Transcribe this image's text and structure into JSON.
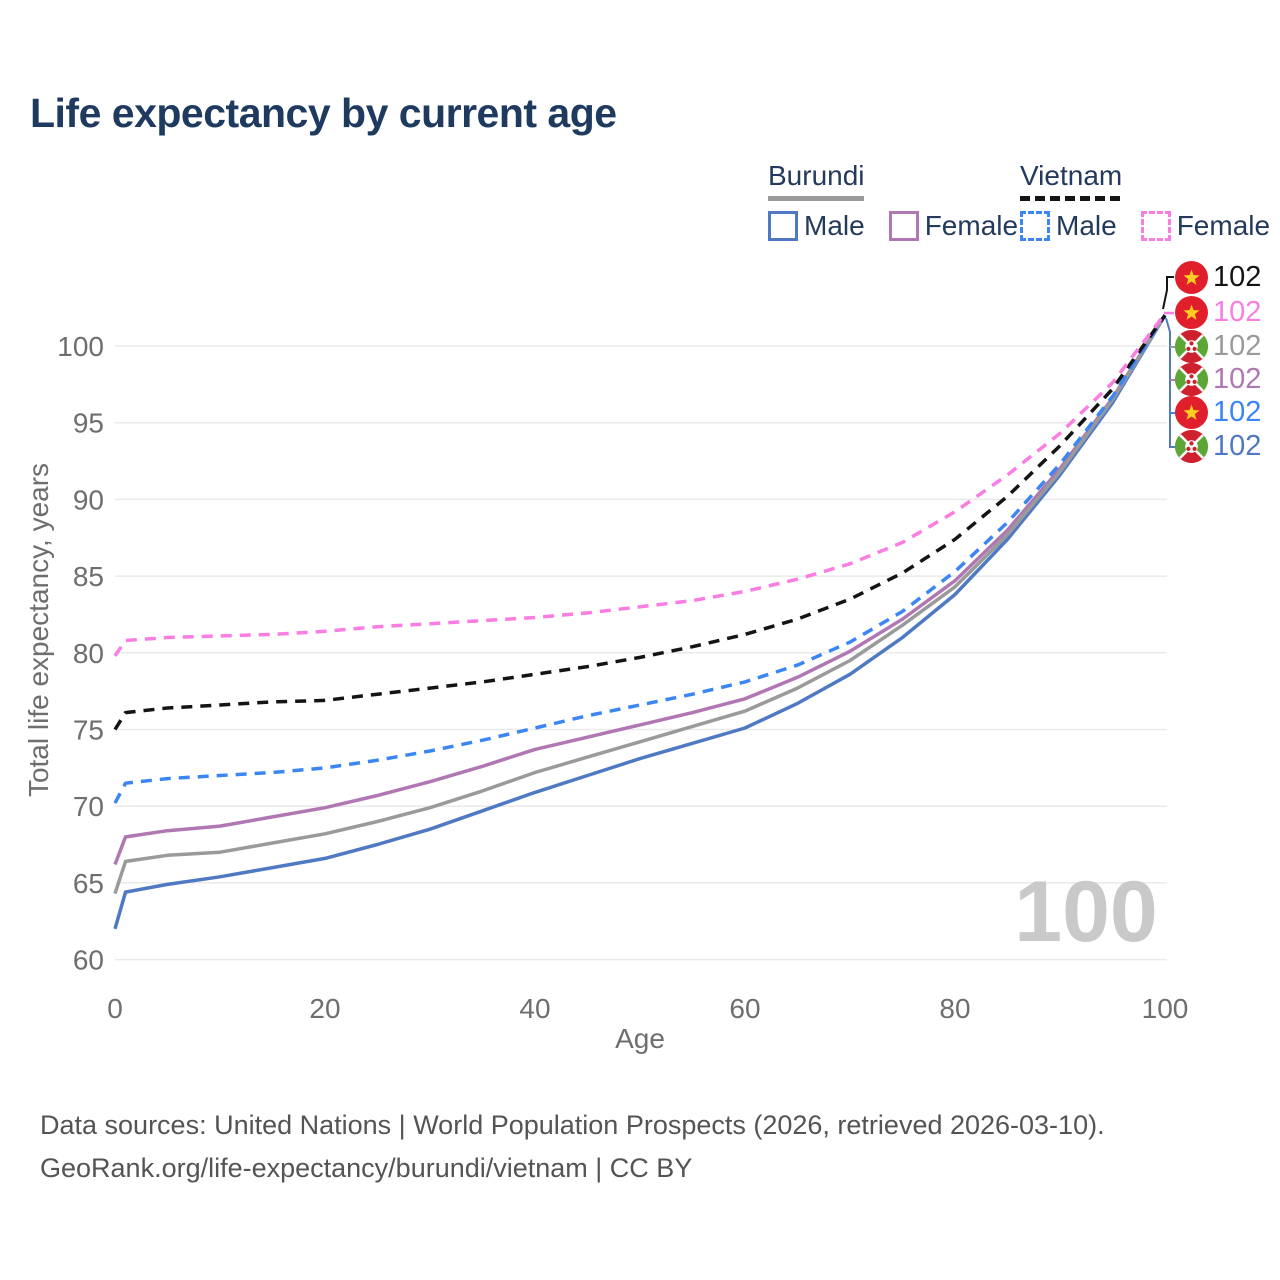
{
  "title": "Life expectancy by current age",
  "legend": {
    "groups": [
      {
        "title": "Burundi",
        "line_style": "solid",
        "underline_color": "#9a9a9a",
        "items": [
          {
            "label": "Male",
            "color": "#5079c3"
          },
          {
            "label": "Female",
            "color": "#b077b3"
          }
        ]
      },
      {
        "title": "Vietnam",
        "line_style": "dashed",
        "underline_color": "#141414",
        "items": [
          {
            "label": "Male",
            "color": "#3c86f4"
          },
          {
            "label": "Female",
            "color": "#fa7de1"
          }
        ]
      }
    ]
  },
  "end_labels": [
    {
      "flag": "vietnam",
      "value": "102",
      "color": "#141414"
    },
    {
      "flag": "vietnam",
      "value": "102",
      "color": "#fa7de1"
    },
    {
      "flag": "burundi",
      "value": "102",
      "color": "#9a9a9a"
    },
    {
      "flag": "burundi",
      "value": "102",
      "color": "#b077b3"
    },
    {
      "flag": "vietnam",
      "value": "102",
      "color": "#3c86f4"
    },
    {
      "flag": "burundi",
      "value": "102",
      "color": "#5079c3"
    }
  ],
  "watermark": "100",
  "footer": {
    "line1": "Data sources: United Nations | World Population Prospects (2026, retrieved 2026-03-10).",
    "line2": "GeoRank.org/life-expectancy/burundi/vietnam | CC BY"
  },
  "chart_data": {
    "type": "line",
    "title": "Life expectancy by current age",
    "xlabel": "Age",
    "ylabel": "Total life expectancy, years",
    "xlim": [
      0,
      100
    ],
    "ylim": [
      60,
      103
    ],
    "xticks": [
      0,
      20,
      40,
      60,
      80,
      100
    ],
    "yticks": [
      60,
      65,
      70,
      75,
      80,
      85,
      90,
      95,
      100
    ],
    "grid": "horizontal",
    "legend_position": "top-right",
    "x": [
      0,
      1,
      5,
      10,
      15,
      20,
      25,
      30,
      35,
      40,
      45,
      50,
      55,
      60,
      65,
      70,
      75,
      80,
      85,
      90,
      95,
      100
    ],
    "series": [
      {
        "name": "Burundi Male",
        "country": "Burundi",
        "sex": "Male",
        "color": "#5079c3",
        "dash": "solid",
        "values": [
          62.0,
          64.4,
          64.9,
          65.4,
          66.0,
          66.6,
          67.5,
          68.5,
          69.7,
          70.9,
          72.0,
          73.1,
          74.1,
          75.1,
          76.7,
          78.6,
          81.0,
          83.8,
          87.4,
          91.6,
          96.3,
          102.0
        ]
      },
      {
        "name": "Burundi Female",
        "country": "Burundi",
        "sex": "Female",
        "color": "#b077b3",
        "dash": "solid",
        "values": [
          66.2,
          68.0,
          68.4,
          68.7,
          69.3,
          69.9,
          70.7,
          71.6,
          72.6,
          73.7,
          74.5,
          75.3,
          76.1,
          77.0,
          78.4,
          80.1,
          82.2,
          84.7,
          88.0,
          92.0,
          96.6,
          102.0
        ]
      },
      {
        "name": "Burundi Both sexes",
        "country": "Burundi",
        "sex": "Both",
        "color": "#9a9a9a",
        "dash": "solid",
        "values": [
          64.3,
          66.4,
          66.8,
          67.0,
          67.6,
          68.2,
          69.0,
          69.9,
          71.0,
          72.2,
          73.2,
          74.2,
          75.2,
          76.2,
          77.7,
          79.5,
          81.8,
          84.3,
          87.7,
          91.8,
          96.5,
          102.0
        ]
      },
      {
        "name": "Vietnam Male",
        "country": "Vietnam",
        "sex": "Male",
        "color": "#3c86f4",
        "dash": "dashed",
        "values": [
          70.2,
          71.5,
          71.8,
          72.0,
          72.2,
          72.5,
          73.0,
          73.6,
          74.3,
          75.1,
          75.9,
          76.6,
          77.3,
          78.1,
          79.2,
          80.7,
          82.7,
          85.3,
          88.5,
          92.3,
          96.7,
          102.0
        ]
      },
      {
        "name": "Vietnam Both sexes",
        "country": "Vietnam",
        "sex": "Both",
        "color": "#141414",
        "dash": "dashed",
        "values": [
          75.0,
          76.1,
          76.4,
          76.6,
          76.8,
          76.9,
          77.3,
          77.7,
          78.1,
          78.6,
          79.1,
          79.7,
          80.4,
          81.2,
          82.2,
          83.5,
          85.2,
          87.4,
          90.2,
          93.5,
          97.2,
          102.0
        ]
      },
      {
        "name": "Vietnam Female",
        "country": "Vietnam",
        "sex": "Female",
        "color": "#fa7de1",
        "dash": "dashed",
        "values": [
          79.8,
          80.8,
          81.0,
          81.1,
          81.2,
          81.4,
          81.7,
          81.9,
          82.1,
          82.3,
          82.6,
          83.0,
          83.4,
          84.0,
          84.8,
          85.8,
          87.2,
          89.2,
          91.6,
          94.3,
          97.6,
          102.1
        ]
      }
    ],
    "end_value_label": "102"
  }
}
